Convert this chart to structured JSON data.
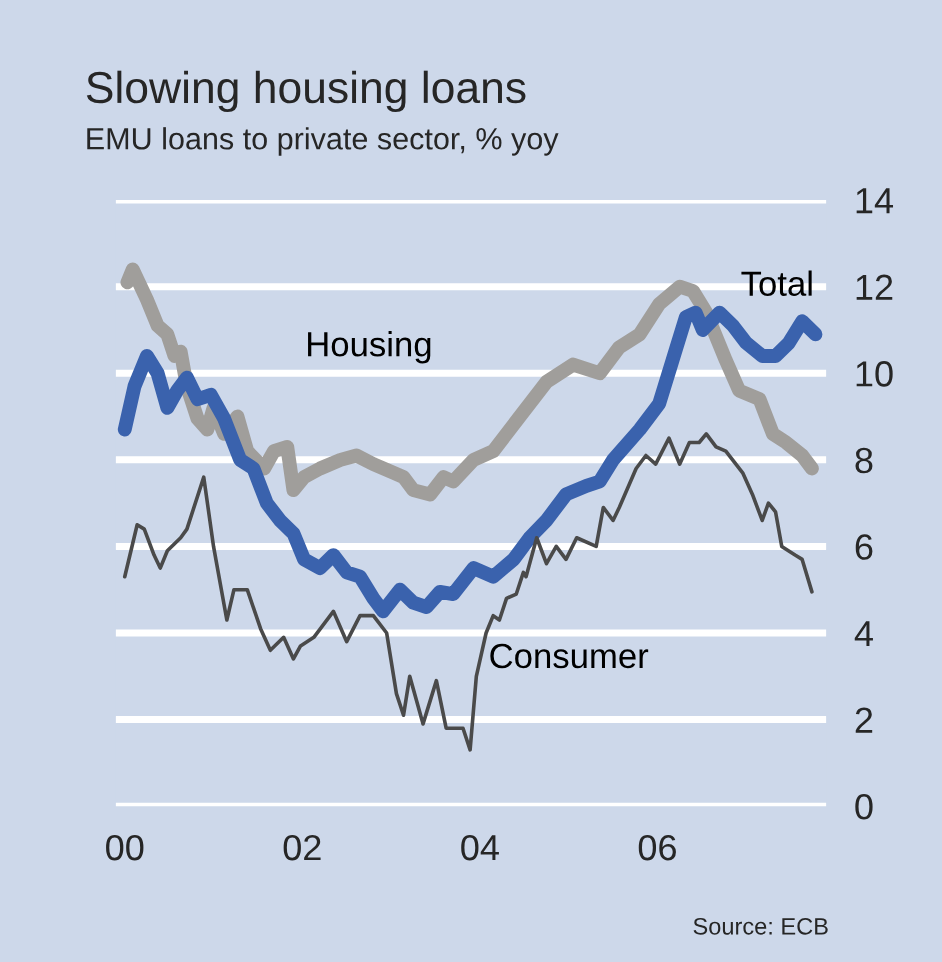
{
  "chart_data": {
    "type": "line",
    "title": "Slowing housing loans",
    "subtitle": "EMU loans to private sector, % yoy",
    "annotations": [
      "Source: ECB"
    ],
    "xlim": [
      1999.9,
      2007.9
    ],
    "xticks": [
      {
        "value": 2000,
        "label": "00"
      },
      {
        "value": 2002,
        "label": "02"
      },
      {
        "value": 2004,
        "label": "04"
      },
      {
        "value": 2006,
        "label": "06"
      }
    ],
    "ylim": [
      0,
      14
    ],
    "yticks": [
      0,
      2,
      4,
      6,
      8,
      10,
      12,
      14
    ],
    "grid": "y",
    "legend": false,
    "series": [
      {
        "name": "Housing",
        "color": "#a09e9b",
        "x": [
          2000.03,
          2000.09,
          2000.25,
          2000.37,
          2000.48,
          2000.56,
          2000.63,
          2000.7,
          2000.82,
          2000.93,
          2001.0,
          2001.12,
          2001.27,
          2001.38,
          2001.57,
          2001.68,
          2001.83,
          2001.9,
          2002.02,
          2002.2,
          2002.43,
          2002.61,
          2002.8,
          2003.03,
          2003.14,
          2003.25,
          2003.44,
          2003.59,
          2003.7,
          2003.93,
          2004.15,
          2004.45,
          2004.75,
          2005.05,
          2005.35,
          2005.57,
          2005.8,
          2006.02,
          2006.25,
          2006.4,
          2006.55,
          2006.77,
          2006.92,
          2007.15,
          2007.3,
          2007.45,
          2007.63,
          2007.74
        ],
        "values": [
          12.1,
          12.4,
          11.7,
          11.1,
          10.9,
          10.4,
          10.5,
          9.7,
          8.95,
          8.7,
          9.2,
          8.6,
          9.0,
          8.2,
          7.8,
          8.2,
          8.3,
          7.3,
          7.6,
          7.8,
          8.0,
          8.1,
          7.9,
          7.7,
          7.6,
          7.3,
          7.2,
          7.6,
          7.5,
          8.0,
          8.2,
          9.0,
          9.8,
          10.2,
          10.0,
          10.6,
          10.9,
          11.6,
          12.0,
          11.9,
          11.4,
          10.3,
          9.6,
          9.4,
          8.6,
          8.4,
          8.1,
          7.8
        ]
      },
      {
        "name": "Total",
        "color": "#3a62ad",
        "x": [
          2000.0,
          2000.11,
          2000.25,
          2000.37,
          2000.48,
          2000.59,
          2000.7,
          2000.82,
          2000.97,
          2001.12,
          2001.3,
          2001.45,
          2001.6,
          2001.75,
          2001.9,
          2002.02,
          2002.2,
          2002.35,
          2002.5,
          2002.65,
          2002.8,
          2002.91,
          2003.1,
          2003.25,
          2003.4,
          2003.55,
          2003.7,
          2003.93,
          2004.15,
          2004.38,
          2004.56,
          2004.75,
          2004.97,
          2005.2,
          2005.35,
          2005.5,
          2005.8,
          2006.02,
          2006.17,
          2006.32,
          2006.43,
          2006.51,
          2006.7,
          2006.85,
          2007.0,
          2007.18,
          2007.33,
          2007.48,
          2007.63,
          2007.78
        ],
        "values": [
          8.7,
          9.7,
          10.4,
          10.0,
          9.2,
          9.6,
          9.9,
          9.4,
          9.5,
          8.95,
          8.0,
          7.8,
          7.0,
          6.6,
          6.3,
          5.7,
          5.5,
          5.8,
          5.4,
          5.3,
          4.8,
          4.5,
          5.0,
          4.7,
          4.6,
          4.95,
          4.9,
          5.5,
          5.3,
          5.7,
          6.2,
          6.6,
          7.2,
          7.4,
          7.5,
          8.0,
          8.7,
          9.3,
          10.3,
          11.3,
          11.4,
          11.0,
          11.4,
          11.1,
          10.7,
          10.4,
          10.4,
          10.7,
          11.2,
          10.9
        ]
      },
      {
        "name": "Consumer",
        "color": "#4a4a4a",
        "x": [
          2000.0,
          2000.14,
          2000.22,
          2000.33,
          2000.4,
          2000.48,
          2000.63,
          2000.7,
          2000.89,
          2001.0,
          2001.15,
          2001.23,
          2001.38,
          2001.53,
          2001.64,
          2001.79,
          2001.9,
          2001.98,
          2002.13,
          2002.35,
          2002.5,
          2002.65,
          2002.8,
          2002.95,
          2003.06,
          2003.14,
          2003.21,
          2003.36,
          2003.51,
          2003.62,
          2003.81,
          2003.89,
          2003.96,
          2004.07,
          2004.15,
          2004.22,
          2004.3,
          2004.41,
          2004.49,
          2004.52,
          2004.64,
          2004.75,
          2004.86,
          2004.97,
          2005.09,
          2005.31,
          2005.39,
          2005.5,
          2005.57,
          2005.76,
          2005.87,
          2005.98,
          2006.13,
          2006.25,
          2006.36,
          2006.47,
          2006.55,
          2006.66,
          2006.77,
          2006.96,
          2007.07,
          2007.18,
          2007.25,
          2007.33,
          2007.4,
          2007.55,
          2007.63,
          2007.74
        ],
        "values": [
          5.3,
          6.5,
          6.4,
          5.8,
          5.5,
          5.9,
          6.2,
          6.4,
          7.6,
          6.0,
          4.3,
          5.0,
          5.0,
          4.1,
          3.6,
          3.9,
          3.4,
          3.7,
          3.9,
          4.5,
          3.8,
          4.4,
          4.4,
          4.0,
          2.6,
          2.1,
          3.0,
          1.9,
          2.9,
          1.8,
          1.8,
          1.3,
          3.0,
          4.0,
          4.4,
          4.3,
          4.8,
          4.9,
          5.4,
          5.3,
          6.2,
          5.6,
          6.0,
          5.7,
          6.2,
          6.0,
          6.9,
          6.6,
          6.9,
          7.8,
          8.1,
          7.9,
          8.5,
          7.9,
          8.4,
          8.4,
          8.6,
          8.3,
          8.2,
          7.7,
          7.2,
          6.6,
          7.0,
          6.8,
          6.0,
          5.8,
          5.7,
          4.95
        ]
      }
    ]
  }
}
